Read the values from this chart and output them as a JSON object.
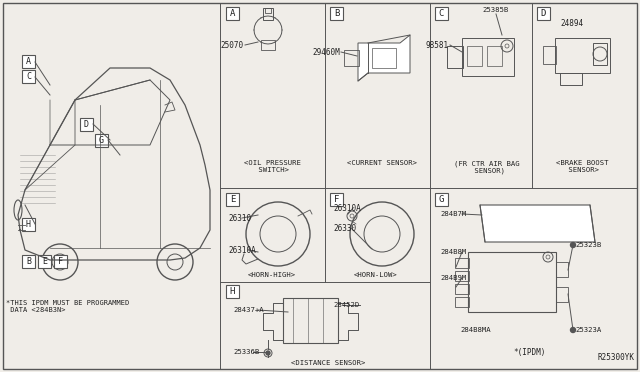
{
  "bg_color": "#f0ede8",
  "line_color": "#555555",
  "text_color": "#222222",
  "ref_code": "R25300YK",
  "bottom_note": "*THIS IPDM MUST BE PROGRAMMED\n DATA <284B3N>",
  "part_A_num": "25070",
  "part_A_desc": "<OIL PRESSURE\n SWITCH>",
  "part_B_num": "29460M",
  "part_B_desc": "<CURRENT SENSOR>",
  "part_C_num": "98581",
  "part_C_extra": "25385B",
  "part_C_desc": "(FR CTR AIR BAG\n SENSOR)",
  "part_D_num": "24894",
  "part_D_desc": "<BRAKE BOOST\n SENSOR>",
  "part_E_num1": "26310",
  "part_E_num2": "26310A",
  "part_E_desc": "<HORN-HIGH>",
  "part_F_num1": "26310A",
  "part_F_num2": "26330",
  "part_F_desc": "<HORN-LOW>",
  "part_G_nums": [
    "284B7M",
    "284B8M",
    "284B9M",
    "284B8MA",
    "25323B",
    "25323A"
  ],
  "part_G_desc": "*(IPDM)",
  "part_H_num1": "28437+A",
  "part_H_num2": "28452D",
  "part_H_num3": "25336B",
  "part_H_desc": "<DISTANCE SENSOR>",
  "labels": [
    "A",
    "B",
    "C",
    "D",
    "E",
    "F",
    "G",
    "H"
  ]
}
